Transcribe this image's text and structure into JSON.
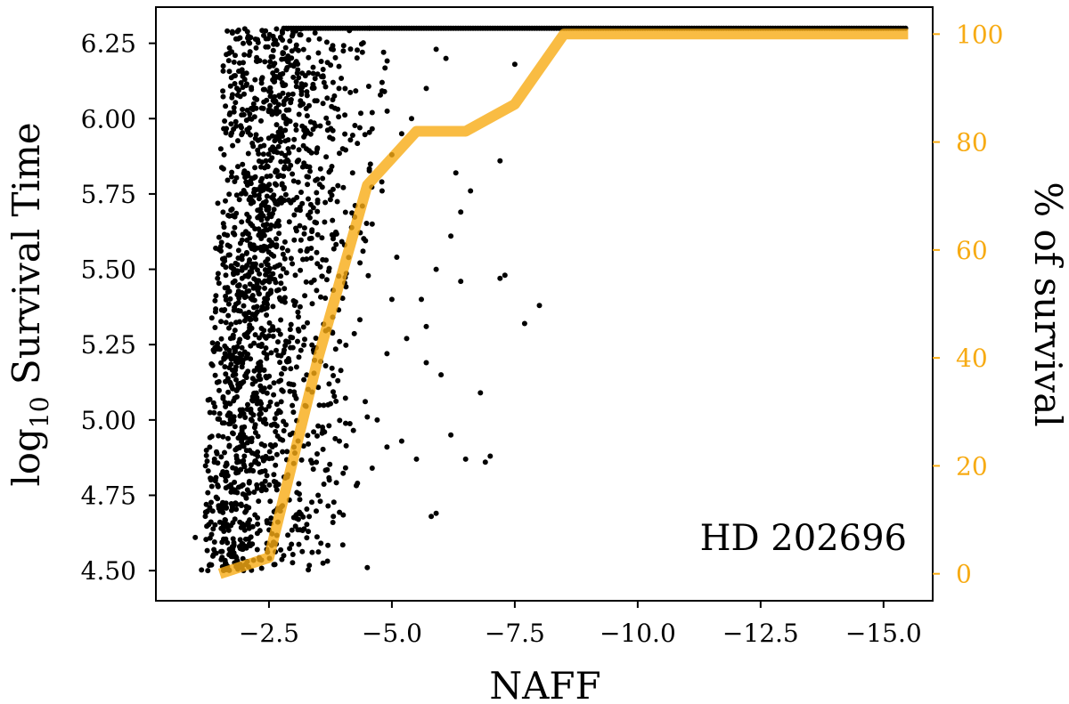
{
  "chart_data": {
    "type": "scatter",
    "annotation": "HD 202696",
    "xlabel": "NAFF",
    "ylabel_left": {
      "main": "log",
      "sub": "10",
      "rest": " Survival Time"
    },
    "ylabel_right": "% of survival",
    "xlim": [
      -0.2,
      -16.0
    ],
    "ylim_left": [
      4.4,
      6.37
    ],
    "ylim_right": [
      -5,
      105
    ],
    "x_ticks": [
      {
        "value": -2.5,
        "label": "−2.5"
      },
      {
        "value": -5.0,
        "label": "−5.0"
      },
      {
        "value": -7.5,
        "label": "−7.5"
      },
      {
        "value": -10.0,
        "label": "−10.0"
      },
      {
        "value": -12.5,
        "label": "−12.5"
      },
      {
        "value": -15.0,
        "label": "−15.0"
      }
    ],
    "y_left_ticks": [
      {
        "value": 4.5,
        "label": "4.50"
      },
      {
        "value": 4.75,
        "label": "4.75"
      },
      {
        "value": 5.0,
        "label": "5.00"
      },
      {
        "value": 5.25,
        "label": "5.25"
      },
      {
        "value": 5.5,
        "label": "5.50"
      },
      {
        "value": 5.75,
        "label": "5.75"
      },
      {
        "value": 6.0,
        "label": "6.00"
      },
      {
        "value": 6.25,
        "label": "6.25"
      }
    ],
    "y_right_ticks": [
      {
        "value": 0,
        "label": "0"
      },
      {
        "value": 20,
        "label": "20"
      },
      {
        "value": 40,
        "label": "40"
      },
      {
        "value": 60,
        "label": "60"
      },
      {
        "value": 80,
        "label": "80"
      },
      {
        "value": 100,
        "label": "100"
      }
    ],
    "grid": false,
    "colors": {
      "scatter": "#000000",
      "survival_line": "#f7ab14",
      "right_axis": "#f7ab14"
    },
    "scatter_series": {
      "name": "log10 Survival Time",
      "points": [
        [
          -1.0,
          4.61
        ],
        [
          -1.3,
          4.52
        ],
        [
          -2.6,
          4.52
        ],
        [
          -2.8,
          4.55
        ],
        [
          -4.5,
          4.51
        ],
        [
          -5.8,
          4.68
        ],
        [
          -5.9,
          4.69
        ],
        [
          -4.3,
          4.79
        ],
        [
          -4.6,
          4.84
        ],
        [
          -4.9,
          4.91
        ],
        [
          -5.2,
          4.93
        ],
        [
          -5.5,
          4.87
        ],
        [
          -6.2,
          4.95
        ],
        [
          -6.5,
          4.87
        ],
        [
          -6.9,
          4.86
        ],
        [
          -7.0,
          4.88
        ],
        [
          -6.8,
          5.09
        ],
        [
          -6.0,
          5.15
        ],
        [
          -5.7,
          5.19
        ],
        [
          -4.5,
          5.01
        ],
        [
          -4.7,
          5.0
        ],
        [
          -3.8,
          4.66
        ],
        [
          -3.3,
          4.63
        ],
        [
          -3.5,
          4.75
        ],
        [
          -7.3,
          5.48
        ],
        [
          -7.2,
          5.47
        ],
        [
          -7.7,
          5.32
        ],
        [
          -8.0,
          5.38
        ],
        [
          -7.2,
          5.86
        ],
        [
          -7.5,
          6.18
        ],
        [
          -6.4,
          5.46
        ],
        [
          -6.2,
          5.61
        ],
        [
          -5.9,
          5.5
        ],
        [
          -5.7,
          5.31
        ],
        [
          -5.6,
          5.4
        ],
        [
          -5.1,
          5.54
        ],
        [
          -4.8,
          5.76
        ],
        [
          -4.6,
          5.65
        ],
        [
          -4.4,
          5.71
        ],
        [
          -4.2,
          5.82
        ],
        [
          -4.0,
          5.9
        ],
        [
          -3.8,
          5.96
        ],
        [
          -3.6,
          6.05
        ],
        [
          -3.4,
          6.15
        ],
        [
          -3.2,
          5.91
        ],
        [
          -6.1,
          6.2
        ],
        [
          -5.9,
          6.23
        ],
        [
          -5.7,
          6.1
        ],
        [
          -5.4,
          6.0
        ],
        [
          -5.2,
          5.95
        ],
        [
          -5.0,
          5.88
        ],
        [
          -4.8,
          6.12
        ],
        [
          -4.6,
          6.02
        ],
        [
          -4.4,
          6.22
        ],
        [
          -6.6,
          5.76
        ],
        [
          -6.4,
          5.69
        ],
        [
          -6.3,
          5.82
        ],
        [
          -5.3,
          5.27
        ],
        [
          -5.0,
          5.4
        ],
        [
          -4.9,
          5.22
        ],
        [
          -3.9,
          5.13
        ],
        [
          -3.7,
          5.05
        ],
        [
          -3.5,
          4.98
        ],
        [
          -3.3,
          4.92
        ]
      ],
      "ceiling": {
        "y": 6.3,
        "x_from": -2.8,
        "x_to": -15.5
      }
    },
    "line_series": {
      "name": "% of survival",
      "x": [
        -1.5,
        -2.5,
        -3.5,
        -4.5,
        -5.5,
        -6.5,
        -7.5,
        -8.5,
        -15.5
      ],
      "y": [
        0,
        3,
        40,
        72,
        82,
        82,
        87,
        100,
        100
      ]
    }
  }
}
